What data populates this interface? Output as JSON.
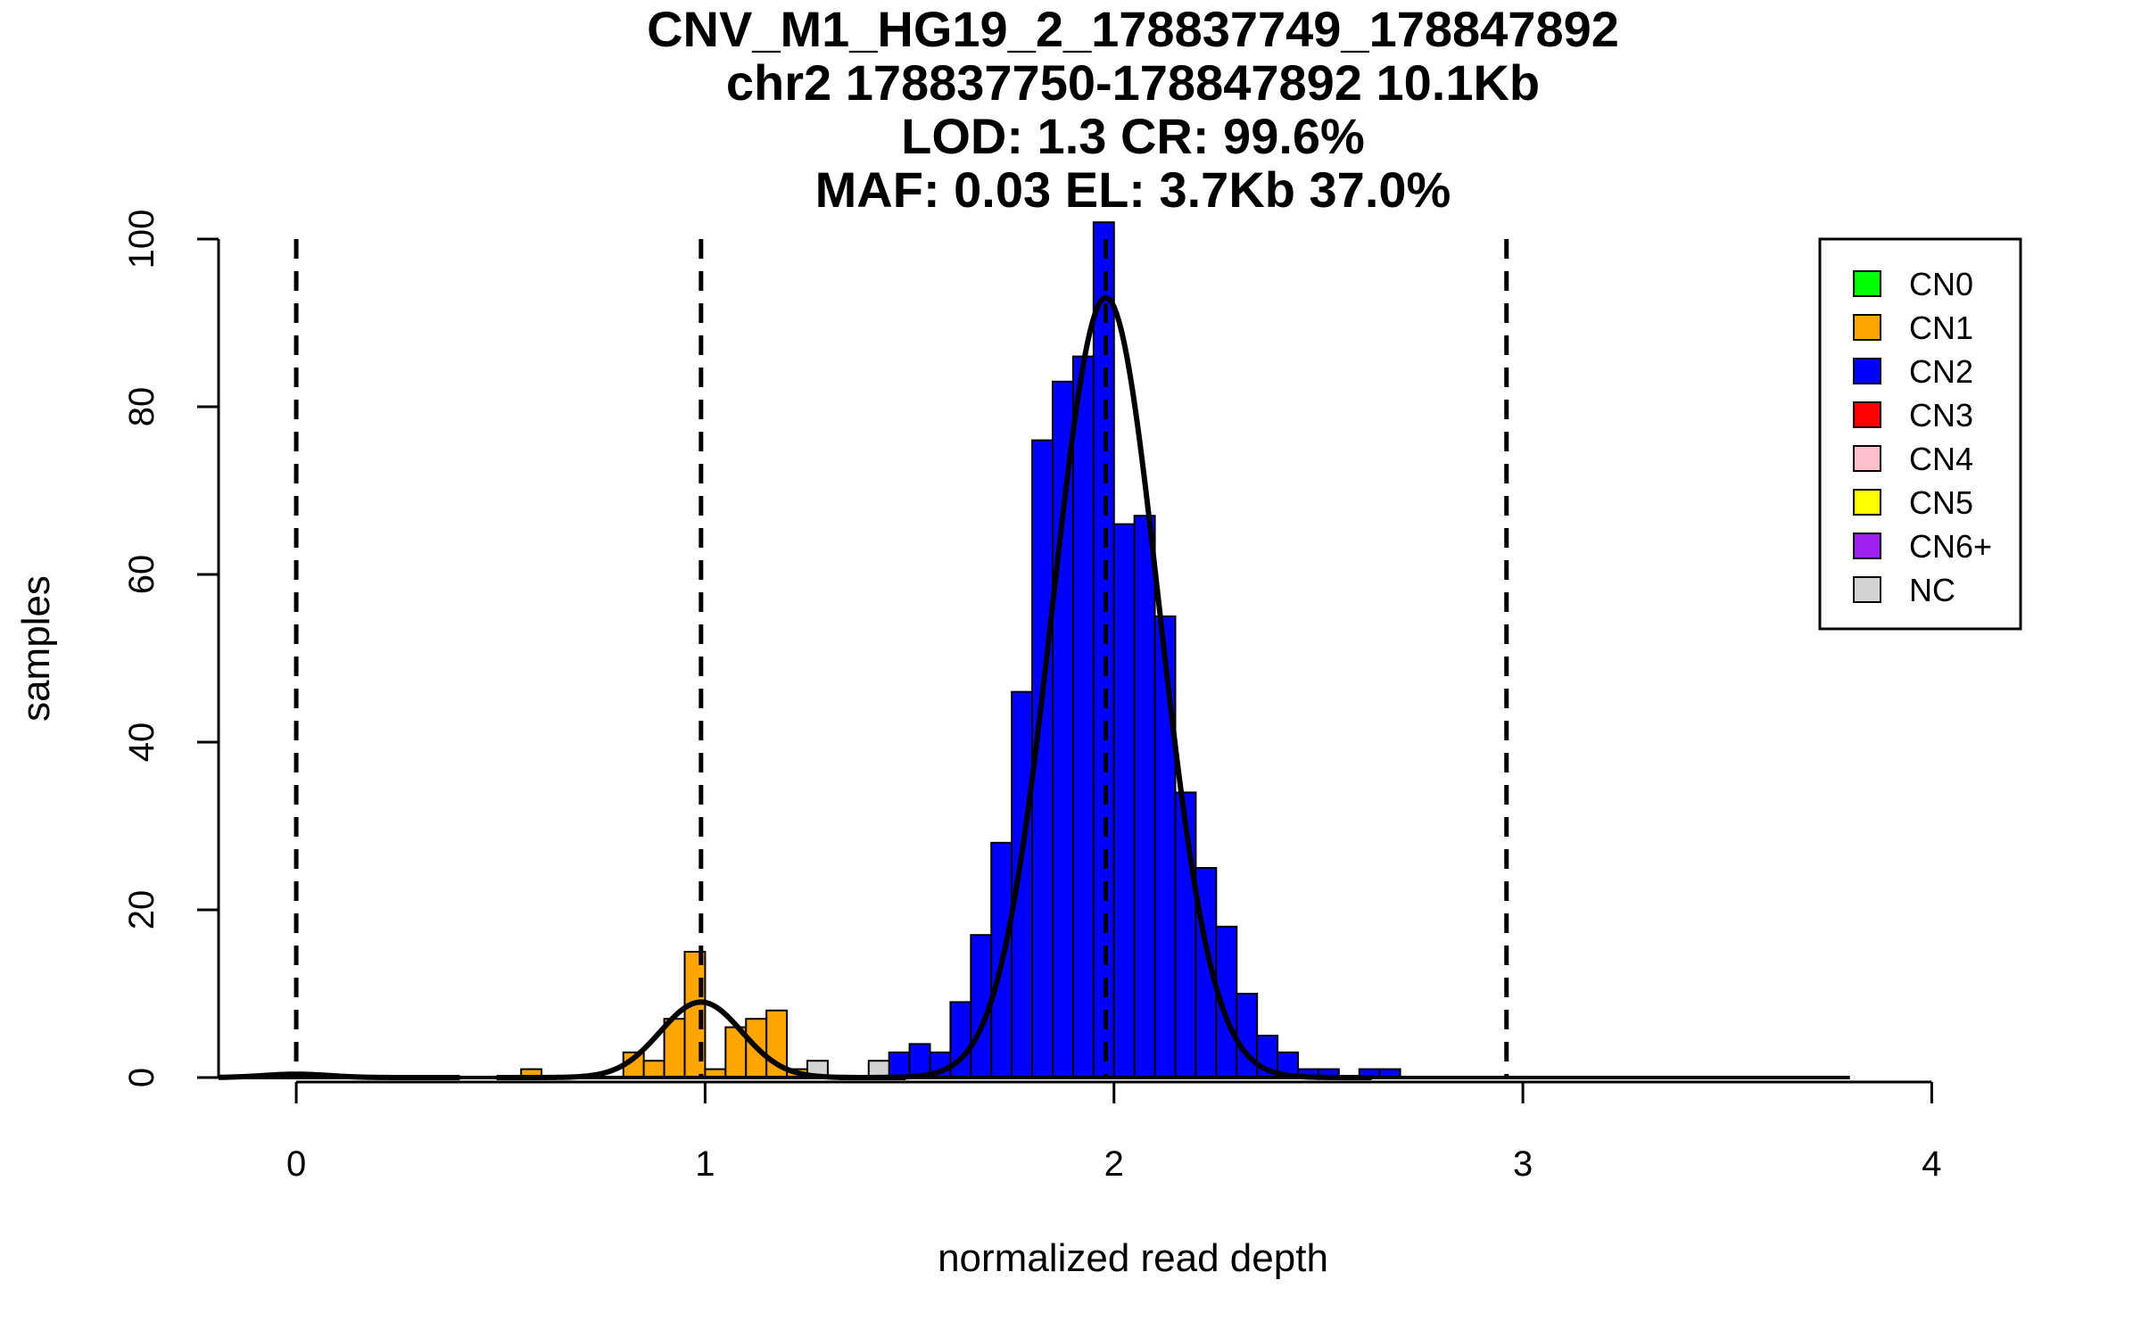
{
  "chart_data": {
    "type": "bar",
    "title": [
      "CNV_M1_HG19_2_178837749_178847892",
      "chr2 178837750-178847892 10.1Kb",
      "LOD: 1.3 CR: 99.6%",
      "MAF: 0.03 EL: 3.7Kb 37.0%"
    ],
    "xlabel": "normalized read depth",
    "ylabel": "samples",
    "xlim": [
      -0.19,
      4.13
    ],
    "ylim": [
      0,
      100
    ],
    "x_ticks": [
      0,
      1,
      2,
      3,
      4
    ],
    "x_tick_labels": [
      "0",
      "1",
      "2",
      "3",
      "4"
    ],
    "y_ticks": [
      0,
      20,
      40,
      60,
      80,
      100
    ],
    "y_tick_labels": [
      "0",
      "20",
      "40",
      "60",
      "80",
      "100"
    ],
    "bin_width": 0.05,
    "reference_lines": [
      0,
      0.99,
      1.98,
      2.96
    ],
    "legend": {
      "placement": "top-right",
      "items": [
        {
          "label": "CN0",
          "color": "#00ff00"
        },
        {
          "label": "CN1",
          "color": "#ffa500"
        },
        {
          "label": "CN2",
          "color": "#0000ff"
        },
        {
          "label": "CN3",
          "color": "#ff0000"
        },
        {
          "label": "CN4",
          "color": "#ffc0cb"
        },
        {
          "label": "CN5",
          "color": "#ffff00"
        },
        {
          "label": "CN6+",
          "color": "#a020f0"
        },
        {
          "label": "NC",
          "color": "#d3d3d3"
        }
      ]
    },
    "series": [
      {
        "name": "CN0",
        "color": "#00ff00",
        "bins": [
          [
            0.0,
            0.5
          ]
        ]
      },
      {
        "name": "CN1",
        "color": "#ffa500",
        "bins": [
          [
            0.55,
            1
          ],
          [
            0.8,
            3
          ],
          [
            0.85,
            2
          ],
          [
            0.9,
            7
          ],
          [
            0.95,
            15
          ],
          [
            1.0,
            1
          ],
          [
            1.05,
            6
          ],
          [
            1.1,
            7
          ],
          [
            1.15,
            8
          ],
          [
            1.2,
            1
          ],
          [
            1.25,
            1
          ]
        ]
      },
      {
        "name": "CN2",
        "color": "#0000ff",
        "bins": [
          [
            1.45,
            3
          ],
          [
            1.5,
            4
          ],
          [
            1.55,
            3
          ],
          [
            1.6,
            9
          ],
          [
            1.65,
            17
          ],
          [
            1.7,
            28
          ],
          [
            1.75,
            46
          ],
          [
            1.8,
            76
          ],
          [
            1.85,
            83
          ],
          [
            1.9,
            86
          ],
          [
            1.95,
            102
          ],
          [
            2.0,
            66
          ],
          [
            2.05,
            67
          ],
          [
            2.1,
            55
          ],
          [
            2.15,
            34
          ],
          [
            2.2,
            25
          ],
          [
            2.25,
            18
          ],
          [
            2.3,
            10
          ],
          [
            2.35,
            5
          ],
          [
            2.4,
            3
          ],
          [
            2.45,
            1
          ],
          [
            2.5,
            1
          ],
          [
            2.6,
            1
          ],
          [
            2.65,
            1
          ]
        ]
      },
      {
        "name": "NC",
        "color": "#d3d3d3",
        "bins": [
          [
            1.25,
            2
          ],
          [
            1.4,
            2
          ]
        ]
      }
    ],
    "fit_curves": [
      {
        "name": "CN0 fit",
        "mean": 0.0,
        "sd": 0.08,
        "peak": 0.4
      },
      {
        "name": "CN1 fit",
        "mean": 0.99,
        "sd": 0.1,
        "peak": 9
      },
      {
        "name": "CN2 fit",
        "mean": 1.98,
        "sd": 0.13,
        "peak": 93
      }
    ],
    "baseline_range": [
      -0.19,
      3.8
    ]
  }
}
